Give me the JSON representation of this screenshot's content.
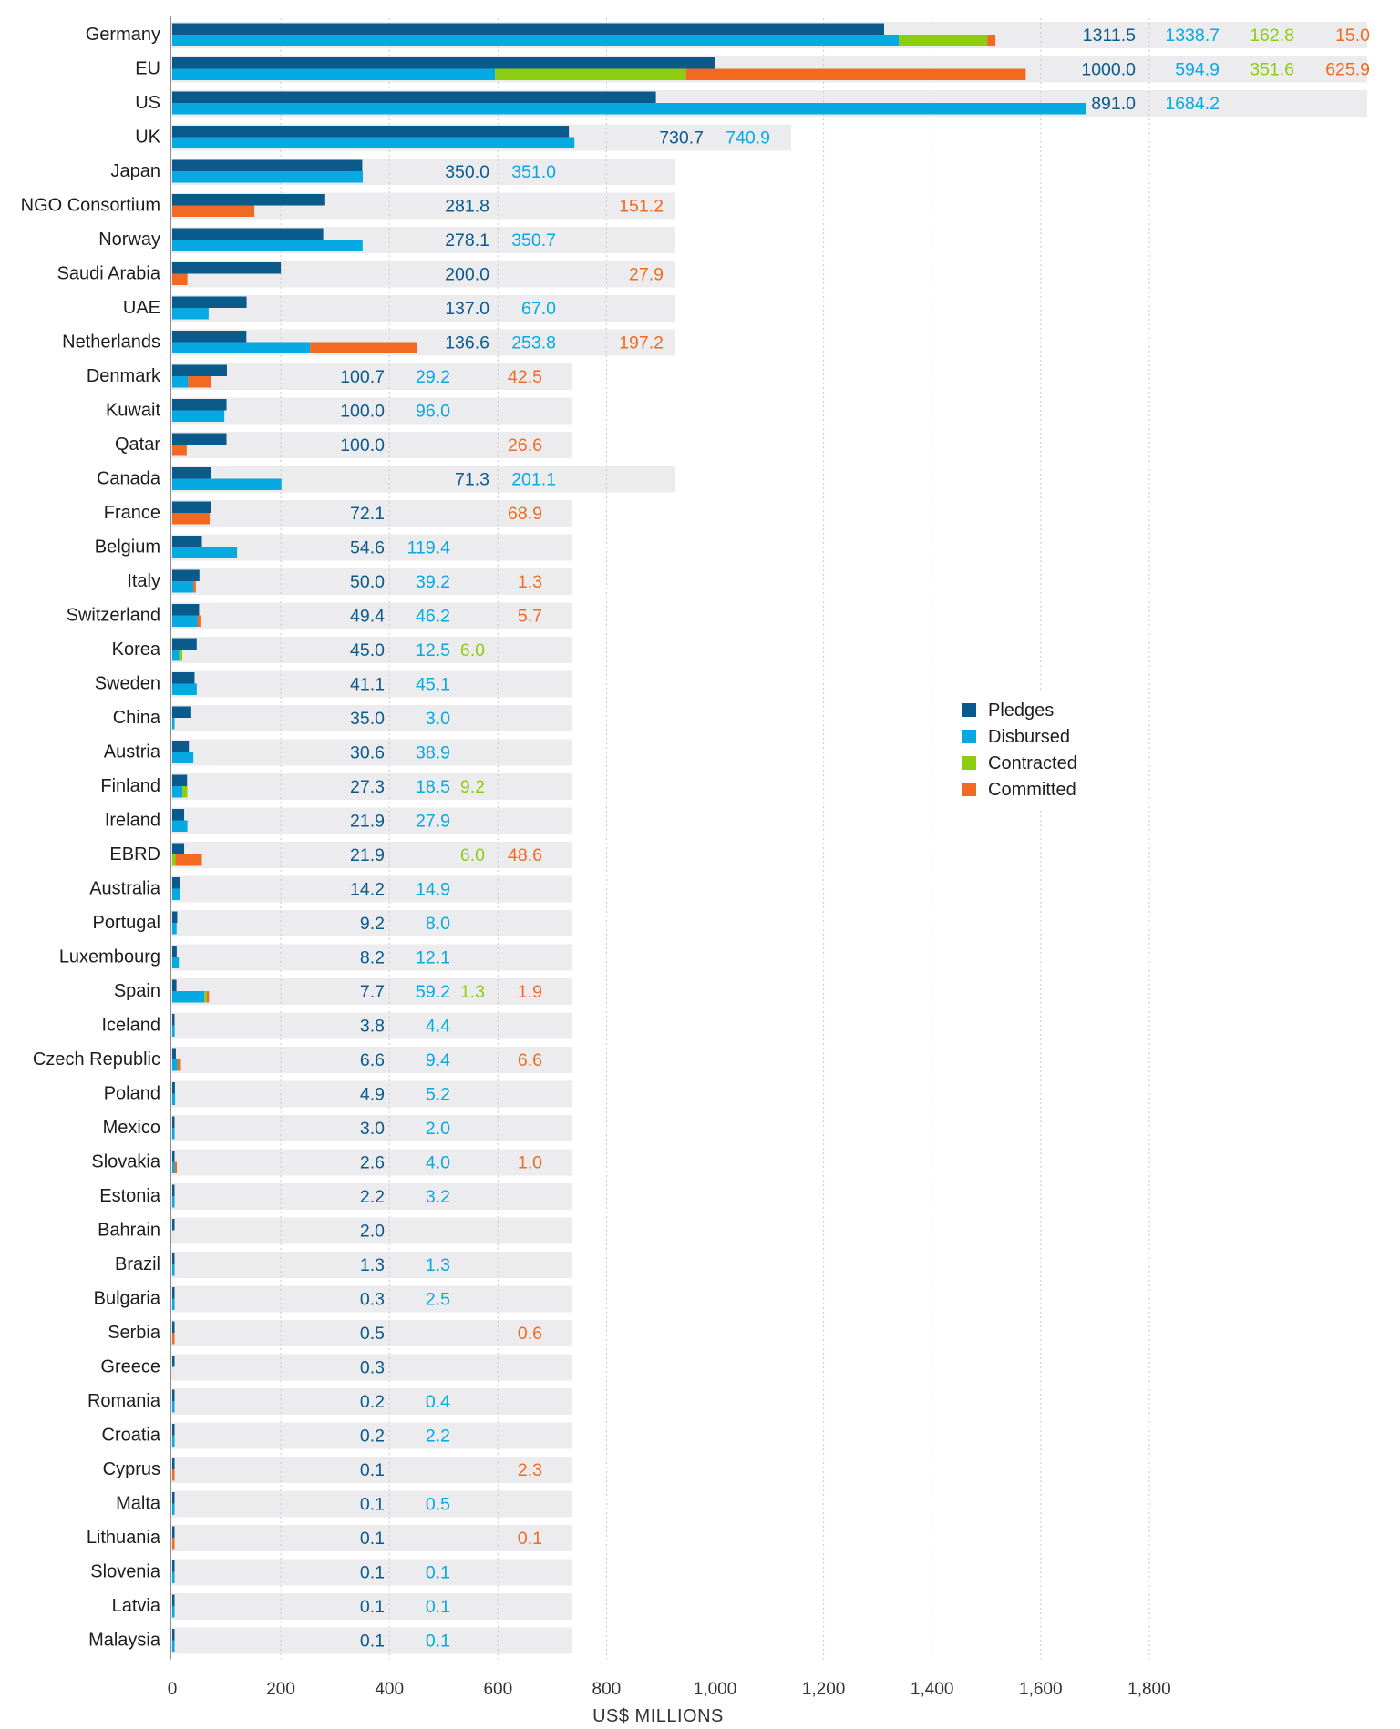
{
  "chart_data": {
    "type": "bar",
    "orientation": "horizontal",
    "xlabel": "US$ MILLIONS",
    "xlim": [
      0,
      1800
    ],
    "xticks": [
      "0",
      "200",
      "400",
      "600",
      "800",
      "1,000",
      "1,200",
      "1,400",
      "1,600",
      "1,800"
    ],
    "xtick_values": [
      0,
      200,
      400,
      600,
      800,
      1000,
      1200,
      1400,
      1600,
      1800
    ],
    "grid": true,
    "legend_position": "right",
    "colors": {
      "Pledges": "#0a5a8c",
      "Disbursed": "#06a9e2",
      "Contracted": "#8ccd10",
      "Committed": "#f26a21"
    },
    "legend": [
      "Pledges",
      "Disbursed",
      "Contracted",
      "Committed"
    ],
    "rows": [
      {
        "label": "Germany",
        "pledges": 1311.5,
        "disbursed": 1338.7,
        "contracted": 162.8,
        "committed": 15.0
      },
      {
        "label": "EU",
        "pledges": 1000.0,
        "disbursed": 594.9,
        "contracted": 351.6,
        "committed": 625.9
      },
      {
        "label": "US",
        "pledges": 891.0,
        "disbursed": 1684.2,
        "contracted": null,
        "committed": null
      },
      {
        "label": "UK",
        "pledges": 730.7,
        "disbursed": 740.9,
        "contracted": null,
        "committed": null
      },
      {
        "label": "Japan",
        "pledges": 350.0,
        "disbursed": 351.0,
        "contracted": null,
        "committed": null
      },
      {
        "label": "NGO Consortium",
        "pledges": 281.8,
        "disbursed": null,
        "contracted": null,
        "committed": 151.2
      },
      {
        "label": "Norway",
        "pledges": 278.1,
        "disbursed": 350.7,
        "contracted": null,
        "committed": null
      },
      {
        "label": "Saudi Arabia",
        "pledges": 200.0,
        "disbursed": null,
        "contracted": null,
        "committed": 27.9
      },
      {
        "label": "UAE",
        "pledges": 137.0,
        "disbursed": 67.0,
        "contracted": null,
        "committed": null
      },
      {
        "label": "Netherlands",
        "pledges": 136.6,
        "disbursed": 253.8,
        "contracted": null,
        "committed": 197.2
      },
      {
        "label": "Denmark",
        "pledges": 100.7,
        "disbursed": 29.2,
        "contracted": null,
        "committed": 42.5
      },
      {
        "label": "Kuwait",
        "pledges": 100.0,
        "disbursed": 96.0,
        "contracted": null,
        "committed": null
      },
      {
        "label": "Qatar",
        "pledges": 100.0,
        "disbursed": null,
        "contracted": null,
        "committed": 26.6
      },
      {
        "label": "Canada",
        "pledges": 71.3,
        "disbursed": 201.1,
        "contracted": null,
        "committed": null
      },
      {
        "label": "France",
        "pledges": 72.1,
        "disbursed": null,
        "contracted": null,
        "committed": 68.9
      },
      {
        "label": "Belgium",
        "pledges": 54.6,
        "disbursed": 119.4,
        "contracted": null,
        "committed": null
      },
      {
        "label": "Italy",
        "pledges": 50.0,
        "disbursed": 39.2,
        "contracted": null,
        "committed": 1.3
      },
      {
        "label": "Switzerland",
        "pledges": 49.4,
        "disbursed": 46.2,
        "contracted": null,
        "committed": 5.7
      },
      {
        "label": "Korea",
        "pledges": 45.0,
        "disbursed": 12.5,
        "contracted": 6.0,
        "committed": null
      },
      {
        "label": "Sweden",
        "pledges": 41.1,
        "disbursed": 45.1,
        "contracted": null,
        "committed": null
      },
      {
        "label": "China",
        "pledges": 35.0,
        "disbursed": 3.0,
        "contracted": null,
        "committed": null
      },
      {
        "label": "Austria",
        "pledges": 30.6,
        "disbursed": 38.9,
        "contracted": null,
        "committed": null
      },
      {
        "label": "Finland",
        "pledges": 27.3,
        "disbursed": 18.5,
        "contracted": 9.2,
        "committed": null
      },
      {
        "label": "Ireland",
        "pledges": 21.9,
        "disbursed": 27.9,
        "contracted": null,
        "committed": null
      },
      {
        "label": "EBRD",
        "pledges": 21.9,
        "disbursed": null,
        "contracted": 6.0,
        "committed": 48.6
      },
      {
        "label": "Australia",
        "pledges": 14.2,
        "disbursed": 14.9,
        "contracted": null,
        "committed": null
      },
      {
        "label": "Portugal",
        "pledges": 9.2,
        "disbursed": 8.0,
        "contracted": null,
        "committed": null
      },
      {
        "label": "Luxembourg",
        "pledges": 8.2,
        "disbursed": 12.1,
        "contracted": null,
        "committed": null
      },
      {
        "label": "Spain",
        "pledges": 7.7,
        "disbursed": 59.2,
        "contracted": 1.3,
        "committed": 1.9
      },
      {
        "label": "Iceland",
        "pledges": 3.8,
        "disbursed": 4.4,
        "contracted": null,
        "committed": null
      },
      {
        "label": "Czech Republic",
        "pledges": 6.6,
        "disbursed": 9.4,
        "contracted": null,
        "committed": 6.6
      },
      {
        "label": "Poland",
        "pledges": 4.9,
        "disbursed": 5.2,
        "contracted": null,
        "committed": null
      },
      {
        "label": "Mexico",
        "pledges": 3.0,
        "disbursed": 2.0,
        "contracted": null,
        "committed": null
      },
      {
        "label": "Slovakia",
        "pledges": 2.6,
        "disbursed": 4.0,
        "contracted": null,
        "committed": 1.0
      },
      {
        "label": "Estonia",
        "pledges": 2.2,
        "disbursed": 3.2,
        "contracted": null,
        "committed": null
      },
      {
        "label": "Bahrain",
        "pledges": 2.0,
        "disbursed": null,
        "contracted": null,
        "committed": null
      },
      {
        "label": "Brazil",
        "pledges": 1.3,
        "disbursed": 1.3,
        "contracted": null,
        "committed": null
      },
      {
        "label": "Bulgaria",
        "pledges": 0.3,
        "disbursed": 2.5,
        "contracted": null,
        "committed": null
      },
      {
        "label": "Serbia",
        "pledges": 0.5,
        "disbursed": null,
        "contracted": null,
        "committed": 0.6
      },
      {
        "label": "Greece",
        "pledges": 0.3,
        "disbursed": null,
        "contracted": null,
        "committed": null
      },
      {
        "label": "Romania",
        "pledges": 0.2,
        "disbursed": 0.4,
        "contracted": null,
        "committed": null
      },
      {
        "label": "Croatia",
        "pledges": 0.2,
        "disbursed": 2.2,
        "contracted": null,
        "committed": null
      },
      {
        "label": "Cyprus",
        "pledges": 0.1,
        "disbursed": null,
        "contracted": null,
        "committed": 2.3
      },
      {
        "label": "Malta",
        "pledges": 0.1,
        "disbursed": 0.5,
        "contracted": null,
        "committed": null
      },
      {
        "label": "Lithuania",
        "pledges": 0.1,
        "disbursed": null,
        "contracted": null,
        "committed": 0.1
      },
      {
        "label": "Slovenia",
        "pledges": 0.1,
        "disbursed": 0.1,
        "contracted": null,
        "committed": null
      },
      {
        "label": "Latvia",
        "pledges": 0.1,
        "disbursed": 0.1,
        "contracted": null,
        "committed": null
      },
      {
        "label": "Malaysia",
        "pledges": 0.1,
        "disbursed": 0.1,
        "contracted": null,
        "committed": null
      }
    ]
  }
}
